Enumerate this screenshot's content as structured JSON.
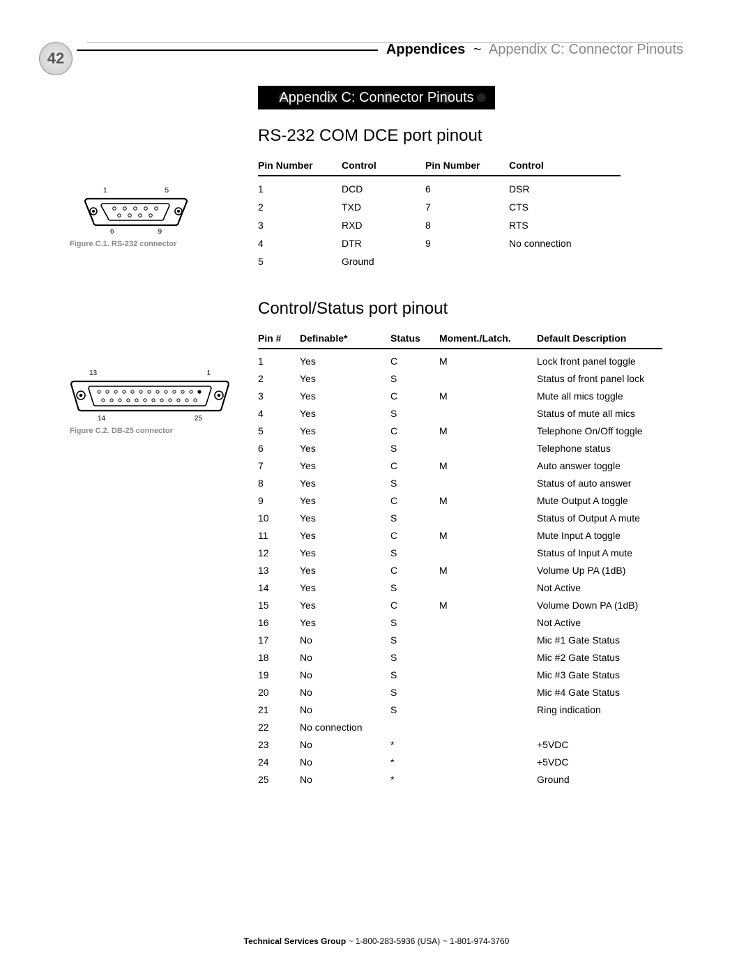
{
  "page_number": "42",
  "header": {
    "bold": "Appendices",
    "sep": "~",
    "gray": "Appendix C: Connector Pinouts"
  },
  "banner": "Appendix C: Connector Pinouts",
  "section1": {
    "title": "RS-232 COM DCE port pinout",
    "columns": [
      "Pin Number",
      "Control",
      "Pin Number",
      "Control"
    ],
    "rows": [
      [
        "1",
        "DCD",
        "6",
        "DSR"
      ],
      [
        "2",
        "TXD",
        "7",
        "CTS"
      ],
      [
        "3",
        "RXD",
        "8",
        "RTS"
      ],
      [
        "4",
        "DTR",
        "9",
        "No connection"
      ],
      [
        "5",
        "Ground",
        "",
        ""
      ]
    ]
  },
  "figure1": {
    "top_left": "1",
    "top_right": "5",
    "bot_left": "6",
    "bot_right": "9",
    "caption": "Figure C.1.  RS-232 connector"
  },
  "section2": {
    "title": "Control/Status port pinout",
    "columns": [
      "Pin #",
      "Definable*",
      "Status",
      "Moment./Latch.",
      "Default Description"
    ],
    "rows": [
      [
        "1",
        "Yes",
        "C",
        "M",
        "Lock front panel toggle"
      ],
      [
        "2",
        "Yes",
        "S",
        "",
        "Status of front panel lock"
      ],
      [
        "3",
        "Yes",
        "C",
        "M",
        "Mute all mics toggle"
      ],
      [
        "4",
        "Yes",
        "S",
        "",
        "Status of mute all mics"
      ],
      [
        "5",
        "Yes",
        "C",
        "M",
        "Telephone On/Off toggle"
      ],
      [
        "6",
        "Yes",
        "S",
        "",
        "Telephone status"
      ],
      [
        "7",
        "Yes",
        "C",
        "M",
        "Auto answer toggle"
      ],
      [
        "8",
        "Yes",
        "S",
        "",
        "Status of auto answer"
      ],
      [
        "9",
        "Yes",
        "C",
        "M",
        "Mute Output A toggle"
      ],
      [
        "10",
        "Yes",
        "S",
        "",
        "Status of Output A mute"
      ],
      [
        "11",
        "Yes",
        "C",
        "M",
        "Mute Input A toggle"
      ],
      [
        "12",
        "Yes",
        "S",
        "",
        "Status of Input A mute"
      ],
      [
        "13",
        "Yes",
        "C",
        "M",
        "Volume Up PA (1dB)"
      ],
      [
        "14",
        "Yes",
        "S",
        "",
        "Not Active"
      ],
      [
        "15",
        "Yes",
        "C",
        "M",
        "Volume Down PA (1dB)"
      ],
      [
        "16",
        "Yes",
        "S",
        "",
        "Not Active"
      ],
      [
        "17",
        "No",
        "S",
        "",
        "Mic #1 Gate Status"
      ],
      [
        "18",
        "No",
        "S",
        "",
        "Mic #2 Gate Status"
      ],
      [
        "19",
        "No",
        "S",
        "",
        "Mic #3 Gate Status"
      ],
      [
        "20",
        "No",
        "S",
        "",
        "Mic #4 Gate Status"
      ],
      [
        "21",
        "No",
        "S",
        "",
        "Ring indication"
      ],
      [
        "22",
        "No connection",
        "",
        "",
        ""
      ],
      [
        "23",
        "No",
        "*",
        "",
        "+5VDC"
      ],
      [
        "24",
        "No",
        "*",
        "",
        "+5VDC"
      ],
      [
        "25",
        "No",
        "*",
        "",
        "Ground"
      ]
    ]
  },
  "figure2": {
    "top_left": "13",
    "top_right": "1",
    "bot_left": "14",
    "bot_right": "25",
    "caption": "Figure C.2.  DB-25 connector"
  },
  "footer": {
    "bold": "Technical Services Group",
    "rest": " ~ 1-800-283-5936 (USA) ~ 1-801-974-3760"
  },
  "style": {
    "page_bg": "#ffffff",
    "text": "#000000",
    "gray_text": "#888888",
    "rule": "#000000",
    "body_fontsize": 14,
    "header_fontsize": 20,
    "section_title_fontsize": 24,
    "caption_fontsize": 11,
    "footer_fontsize": 12
  }
}
